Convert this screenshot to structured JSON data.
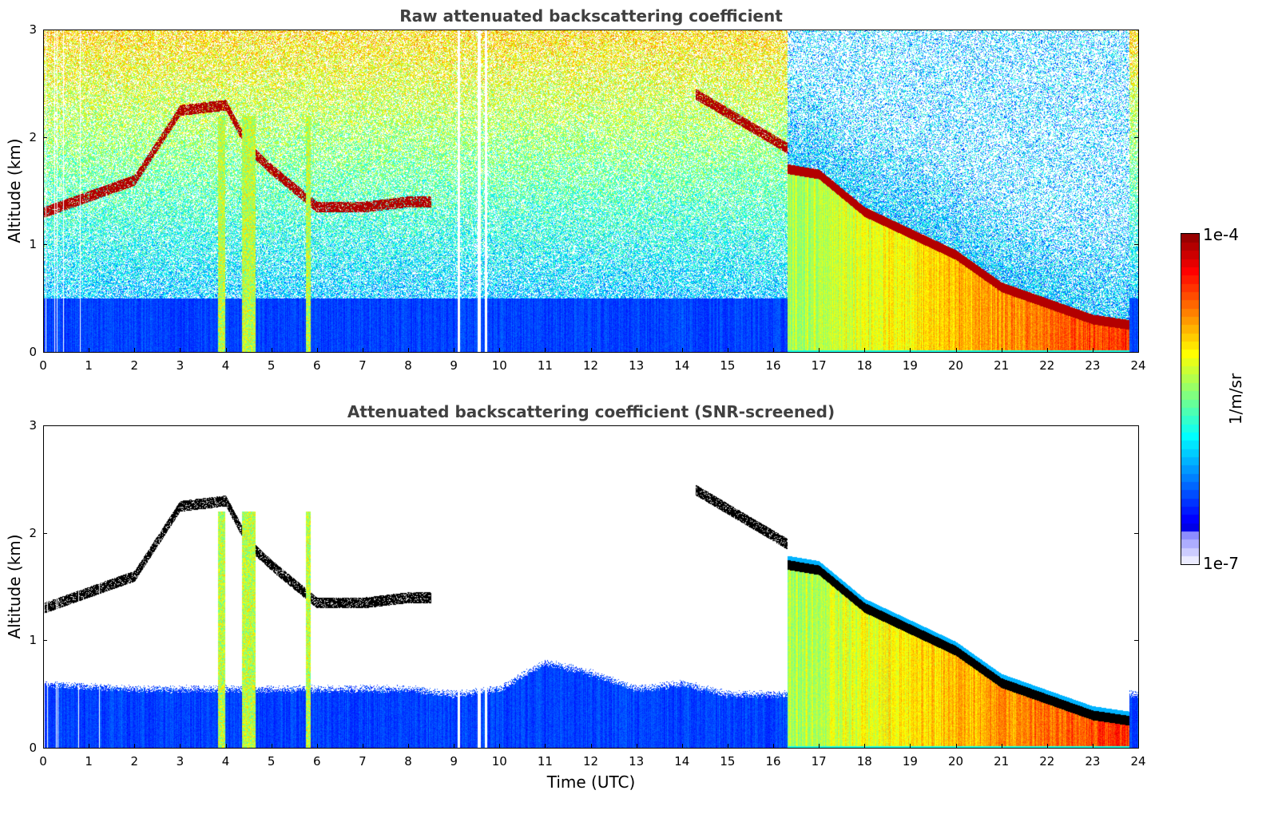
{
  "chart_data": [
    {
      "type": "heatmap",
      "title": "Raw attenuated backscattering coefficient",
      "ylabel": "Altitude (km)",
      "xlabel": "",
      "xlim": [
        0,
        24
      ],
      "ylim": [
        0,
        3
      ],
      "xticks": [
        "0",
        "1",
        "2",
        "3",
        "4",
        "5",
        "6",
        "7",
        "8",
        "9",
        "10",
        "11",
        "12",
        "13",
        "14",
        "15",
        "16",
        "17",
        "18",
        "19",
        "20",
        "21",
        "22",
        "23",
        "24"
      ],
      "yticks": [
        "0",
        "1",
        "2",
        "3"
      ],
      "colormap": "jet",
      "boundary_layer_top_km": [
        [
          0,
          1.3
        ],
        [
          1,
          1.45
        ],
        [
          2,
          1.6
        ],
        [
          3,
          2.25
        ],
        [
          4,
          2.3
        ],
        [
          4.5,
          1.9
        ],
        [
          5,
          1.7
        ],
        [
          6,
          1.35
        ],
        [
          7,
          1.35
        ],
        [
          8,
          1.4
        ],
        [
          16.3,
          1.7
        ],
        [
          17,
          1.65
        ],
        [
          18,
          1.3
        ],
        [
          19,
          1.1
        ],
        [
          20,
          0.9
        ],
        [
          21,
          0.6
        ],
        [
          22,
          0.45
        ],
        [
          23,
          0.3
        ],
        [
          23.8,
          0.25
        ]
      ],
      "dense_aerosol_interval_utc": [
        16.3,
        23.8
      ]
    },
    {
      "type": "heatmap",
      "title": "Attenuated backscattering coefficient (SNR-screened)",
      "ylabel": "Altitude (km)",
      "xlabel": "Time (UTC)",
      "xlim": [
        0,
        24
      ],
      "ylim": [
        0,
        3
      ],
      "xticks": [
        "0",
        "1",
        "2",
        "3",
        "4",
        "5",
        "6",
        "7",
        "8",
        "9",
        "10",
        "11",
        "12",
        "13",
        "14",
        "15",
        "16",
        "17",
        "18",
        "19",
        "20",
        "21",
        "22",
        "23",
        "24"
      ],
      "yticks": [
        "0",
        "1",
        "2",
        "3"
      ],
      "colormap": "jet",
      "screened_mixing_layer_top_km": [
        [
          0,
          0.6
        ],
        [
          2,
          0.55
        ],
        [
          4,
          0.55
        ],
        [
          6,
          0.55
        ],
        [
          8,
          0.55
        ],
        [
          9,
          0.5
        ],
        [
          10,
          0.55
        ],
        [
          11,
          0.8
        ],
        [
          12,
          0.7
        ],
        [
          13,
          0.55
        ],
        [
          14,
          0.6
        ],
        [
          15,
          0.5
        ],
        [
          16,
          0.5
        ]
      ],
      "dense_aerosol_interval_utc": [
        16.3,
        23.8
      ]
    }
  ],
  "colorbar": {
    "max_label": "1e-4",
    "min_label": "1e-7",
    "unit": "1/m/sr",
    "scale": "log",
    "range": [
      1e-07,
      0.0001
    ]
  }
}
